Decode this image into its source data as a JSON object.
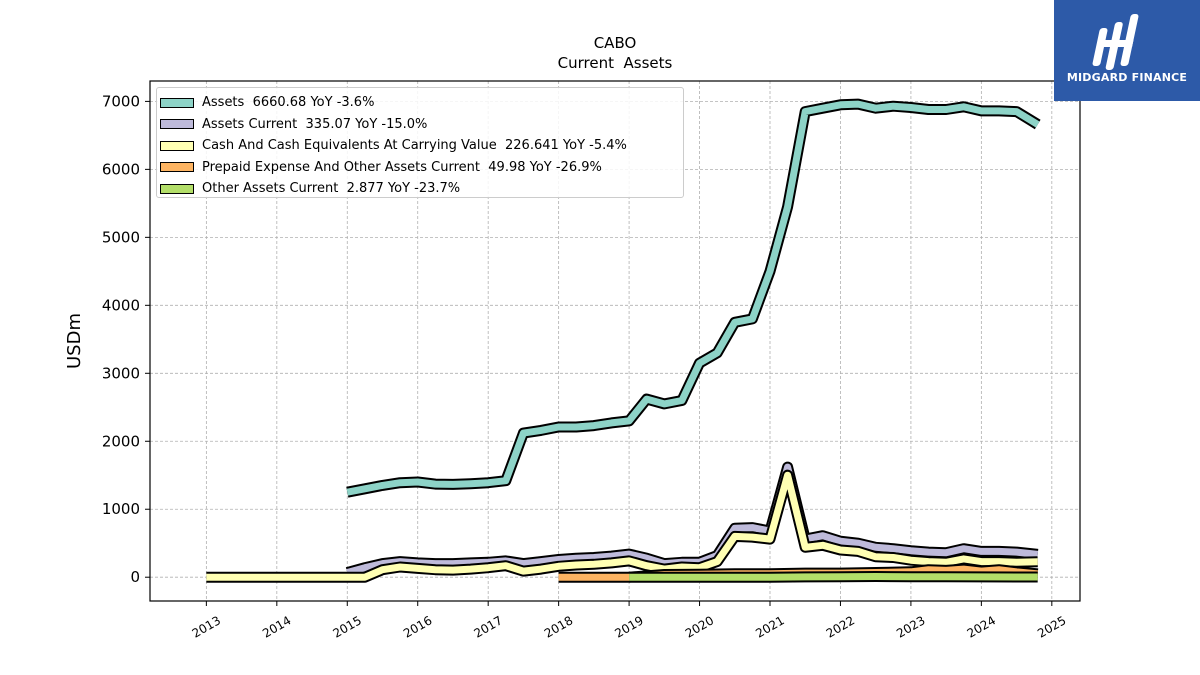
{
  "chart_data": {
    "type": "line",
    "title": "CABO",
    "subtitle": "Current  Assets",
    "ylabel": "USDm",
    "xlabel": "",
    "ylim": [
      -350,
      7300
    ],
    "xlim": [
      2012.2,
      2025.4
    ],
    "x_ticks": [
      "2013",
      "2014",
      "2015",
      "2016",
      "2017",
      "2018",
      "2019",
      "2020",
      "2021",
      "2022",
      "2023",
      "2024",
      "2025"
    ],
    "y_ticks": [
      "0",
      "1000",
      "2000",
      "3000",
      "4000",
      "5000",
      "6000",
      "7000"
    ],
    "grid": true,
    "legend_position": "top-left",
    "series": [
      {
        "name": "Assets",
        "legend_label": "Assets  6660.68 YoY -3.6%",
        "color": "#8dd3c7",
        "points": [
          [
            2015.0,
            1250
          ],
          [
            2015.25,
            1300
          ],
          [
            2015.5,
            1350
          ],
          [
            2015.75,
            1390
          ],
          [
            2016.0,
            1400
          ],
          [
            2016.25,
            1370
          ],
          [
            2016.5,
            1365
          ],
          [
            2016.75,
            1375
          ],
          [
            2017.0,
            1390
          ],
          [
            2017.25,
            1420
          ],
          [
            2017.5,
            2120
          ],
          [
            2017.75,
            2160
          ],
          [
            2018.0,
            2210
          ],
          [
            2018.25,
            2210
          ],
          [
            2018.5,
            2230
          ],
          [
            2018.75,
            2270
          ],
          [
            2019.0,
            2300
          ],
          [
            2019.25,
            2620
          ],
          [
            2019.5,
            2550
          ],
          [
            2019.75,
            2600
          ],
          [
            2020.0,
            3150
          ],
          [
            2020.25,
            3300
          ],
          [
            2020.5,
            3750
          ],
          [
            2020.75,
            3800
          ],
          [
            2021.0,
            4500
          ],
          [
            2021.25,
            5450
          ],
          [
            2021.5,
            6850
          ],
          [
            2021.75,
            6900
          ],
          [
            2022.0,
            6950
          ],
          [
            2022.25,
            6960
          ],
          [
            2022.5,
            6900
          ],
          [
            2022.75,
            6930
          ],
          [
            2023.0,
            6910
          ],
          [
            2023.25,
            6880
          ],
          [
            2023.5,
            6880
          ],
          [
            2023.75,
            6920
          ],
          [
            2024.0,
            6860
          ],
          [
            2024.25,
            6860
          ],
          [
            2024.5,
            6850
          ],
          [
            2024.8,
            6660
          ]
        ]
      },
      {
        "name": "Assets Current",
        "legend_label": "Assets Current  335.07 YoY -15.0%",
        "color": "#bebada",
        "points": [
          [
            2015.0,
            70
          ],
          [
            2015.25,
            140
          ],
          [
            2015.5,
            200
          ],
          [
            2015.75,
            230
          ],
          [
            2016.0,
            210
          ],
          [
            2016.25,
            200
          ],
          [
            2016.5,
            200
          ],
          [
            2016.75,
            210
          ],
          [
            2017.0,
            220
          ],
          [
            2017.25,
            240
          ],
          [
            2017.5,
            200
          ],
          [
            2017.75,
            230
          ],
          [
            2018.0,
            260
          ],
          [
            2018.25,
            280
          ],
          [
            2018.5,
            290
          ],
          [
            2018.75,
            310
          ],
          [
            2019.0,
            340
          ],
          [
            2019.25,
            280
          ],
          [
            2019.5,
            200
          ],
          [
            2019.75,
            220
          ],
          [
            2020.0,
            220
          ],
          [
            2020.25,
            320
          ],
          [
            2020.5,
            720
          ],
          [
            2020.75,
            730
          ],
          [
            2021.0,
            680
          ],
          [
            2021.25,
            1620
          ],
          [
            2021.5,
            560
          ],
          [
            2021.75,
            610
          ],
          [
            2022.0,
            530
          ],
          [
            2022.25,
            500
          ],
          [
            2022.5,
            440
          ],
          [
            2022.75,
            420
          ],
          [
            2023.0,
            390
          ],
          [
            2023.25,
            370
          ],
          [
            2023.5,
            360
          ],
          [
            2023.75,
            420
          ],
          [
            2024.0,
            380
          ],
          [
            2024.25,
            380
          ],
          [
            2024.5,
            370
          ],
          [
            2024.8,
            335
          ]
        ]
      },
      {
        "name": "Cash And Cash Equivalents At Carrying Value",
        "legend_label": "Cash And Cash Equivalents At Carrying Value  226.641 YoY -5.4%",
        "color": "#ffffb3",
        "points": [
          [
            2013.0,
            0
          ],
          [
            2013.5,
            0
          ],
          [
            2014.0,
            0
          ],
          [
            2014.5,
            0
          ],
          [
            2015.0,
            0
          ],
          [
            2015.25,
            0
          ],
          [
            2015.5,
            110
          ],
          [
            2015.75,
            150
          ],
          [
            2016.0,
            130
          ],
          [
            2016.25,
            110
          ],
          [
            2016.5,
            105
          ],
          [
            2016.75,
            120
          ],
          [
            2017.0,
            140
          ],
          [
            2017.25,
            170
          ],
          [
            2017.5,
            90
          ],
          [
            2017.75,
            120
          ],
          [
            2018.0,
            160
          ],
          [
            2018.25,
            180
          ],
          [
            2018.5,
            190
          ],
          [
            2018.75,
            210
          ],
          [
            2019.0,
            240
          ],
          [
            2019.25,
            170
          ],
          [
            2019.5,
            120
          ],
          [
            2019.75,
            150
          ],
          [
            2020.0,
            140
          ],
          [
            2020.25,
            230
          ],
          [
            2020.5,
            600
          ],
          [
            2020.75,
            590
          ],
          [
            2021.0,
            560
          ],
          [
            2021.25,
            1500
          ],
          [
            2021.5,
            440
          ],
          [
            2021.75,
            470
          ],
          [
            2022.0,
            400
          ],
          [
            2022.25,
            380
          ],
          [
            2022.5,
            300
          ],
          [
            2022.75,
            290
          ],
          [
            2023.0,
            250
          ],
          [
            2023.25,
            230
          ],
          [
            2023.5,
            220
          ],
          [
            2023.75,
            270
          ],
          [
            2024.0,
            230
          ],
          [
            2024.25,
            230
          ],
          [
            2024.5,
            220
          ],
          [
            2024.8,
            227
          ]
        ]
      },
      {
        "name": "Prepaid Expense And Other Assets Current",
        "legend_label": "Prepaid Expense And Other Assets Current  49.98 YoY -26.9%",
        "color": "#fdb462",
        "points": [
          [
            2018.0,
            0
          ],
          [
            2018.5,
            0
          ],
          [
            2019.0,
            0
          ],
          [
            2019.5,
            40
          ],
          [
            2020.0,
            45
          ],
          [
            2020.5,
            50
          ],
          [
            2021.0,
            50
          ],
          [
            2021.5,
            60
          ],
          [
            2022.0,
            60
          ],
          [
            2022.5,
            70
          ],
          [
            2023.0,
            80
          ],
          [
            2023.25,
            110
          ],
          [
            2023.5,
            100
          ],
          [
            2023.75,
            120
          ],
          [
            2024.0,
            90
          ],
          [
            2024.25,
            110
          ],
          [
            2024.5,
            80
          ],
          [
            2024.8,
            50
          ]
        ]
      },
      {
        "name": "Other Assets Current",
        "legend_label": "Other Assets Current  2.877 YoY -23.7%",
        "color": "#b3de69",
        "points": [
          [
            2019.0,
            0
          ],
          [
            2019.5,
            0
          ],
          [
            2020.0,
            0
          ],
          [
            2020.5,
            0
          ],
          [
            2021.0,
            0
          ],
          [
            2021.5,
            5
          ],
          [
            2022.0,
            8
          ],
          [
            2022.5,
            10
          ],
          [
            2023.0,
            8
          ],
          [
            2023.5,
            6
          ],
          [
            2024.0,
            4
          ],
          [
            2024.8,
            3
          ]
        ]
      }
    ]
  },
  "branding": {
    "logo_text": "MIDGARD FINANCE",
    "logo_color": "#2d5aa8"
  }
}
